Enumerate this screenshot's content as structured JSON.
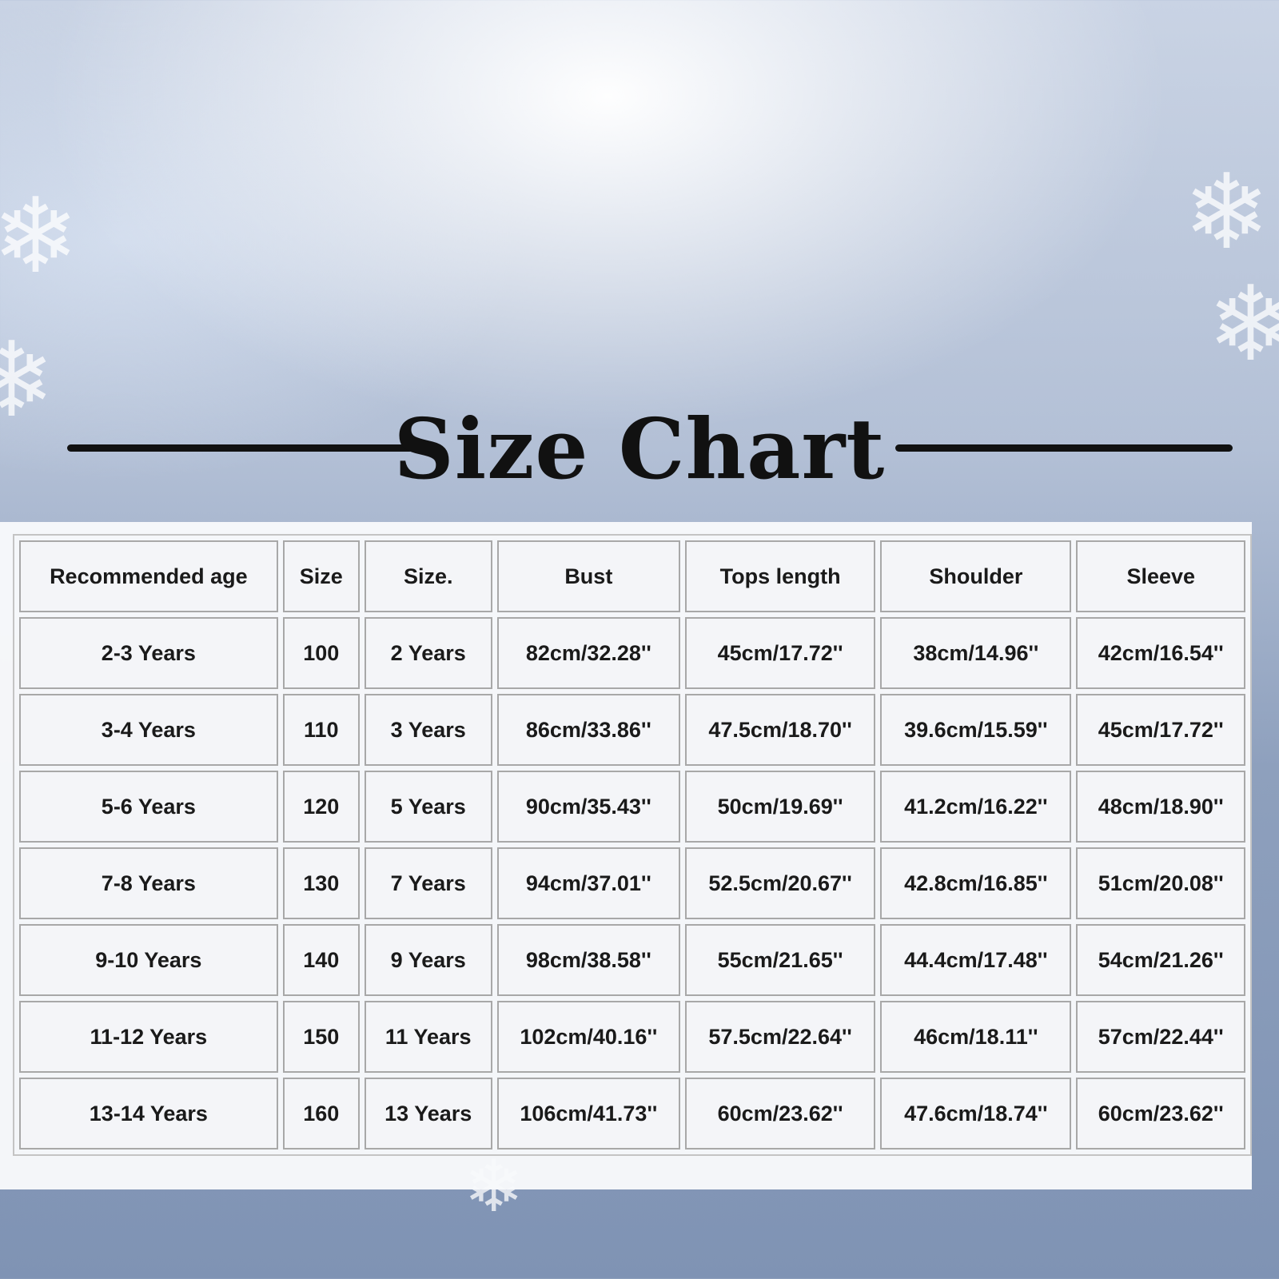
{
  "title": "Size Chart",
  "icons": [
    "snowflake-icon"
  ],
  "table": {
    "headers": [
      "Recommended age",
      "Size",
      "Size.",
      "Bust",
      "Tops length",
      "Shoulder",
      "Sleeve"
    ],
    "rows": [
      [
        "2-3 Years",
        "100",
        "2 Years",
        "82cm/32.28''",
        "45cm/17.72''",
        "38cm/14.96''",
        "42cm/16.54''"
      ],
      [
        "3-4 Years",
        "110",
        "3 Years",
        "86cm/33.86''",
        "47.5cm/18.70''",
        "39.6cm/15.59''",
        "45cm/17.72''"
      ],
      [
        "5-6 Years",
        "120",
        "5 Years",
        "90cm/35.43''",
        "50cm/19.69''",
        "41.2cm/16.22''",
        "48cm/18.90''"
      ],
      [
        "7-8 Years",
        "130",
        "7 Years",
        "94cm/37.01''",
        "52.5cm/20.67''",
        "42.8cm/16.85''",
        "51cm/20.08''"
      ],
      [
        "9-10 Years",
        "140",
        "9 Years",
        "98cm/38.58''",
        "55cm/21.65''",
        "44.4cm/17.48''",
        "54cm/21.26''"
      ],
      [
        "11-12 Years",
        "150",
        "11 Years",
        "102cm/40.16''",
        "57.5cm/22.64''",
        "46cm/18.11''",
        "57cm/22.44''"
      ],
      [
        "13-14 Years",
        "160",
        "13 Years",
        "106cm/41.73''",
        "60cm/23.62''",
        "47.6cm/18.74''",
        "60cm/23.62''"
      ]
    ]
  }
}
